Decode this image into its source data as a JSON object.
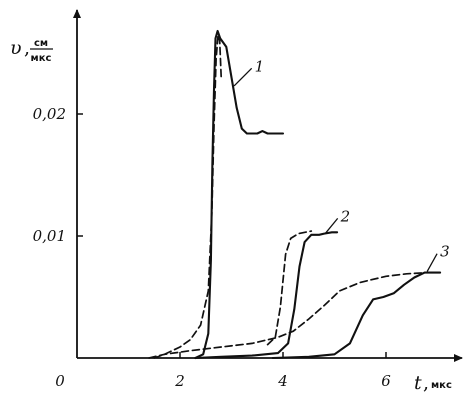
{
  "chart_data": {
    "type": "line",
    "xlabel": "t",
    "xunit": "мкс",
    "ylabel": "υ",
    "yunit_numerator": "см",
    "yunit_denominator": "мкс",
    "origin_label": "0",
    "xlim": [
      0,
      7.5
    ],
    "ylim": [
      0,
      0.028
    ],
    "x_ticks": [
      {
        "value": 2,
        "label": "2"
      },
      {
        "value": 4,
        "label": "4"
      },
      {
        "value": 6,
        "label": "6"
      }
    ],
    "y_ticks": [
      {
        "value": 0.01,
        "label": "0,01"
      },
      {
        "value": 0.02,
        "label": "0,02"
      }
    ],
    "grid": false,
    "series": [
      {
        "name": "1",
        "style": "solid",
        "points": [
          [
            2.3,
            0
          ],
          [
            2.45,
            0.0003
          ],
          [
            2.55,
            0.002
          ],
          [
            2.6,
            0.008
          ],
          [
            2.63,
            0.016
          ],
          [
            2.66,
            0.022
          ],
          [
            2.69,
            0.0262
          ],
          [
            2.73,
            0.0268
          ],
          [
            2.78,
            0.0262
          ],
          [
            2.9,
            0.0255
          ],
          [
            3.0,
            0.023
          ],
          [
            3.1,
            0.0205
          ],
          [
            3.2,
            0.0188
          ],
          [
            3.3,
            0.0184
          ],
          [
            3.5,
            0.0184
          ],
          [
            3.6,
            0.0186
          ],
          [
            3.7,
            0.0184
          ],
          [
            4.0,
            0.0184
          ]
        ],
        "label_at": [
          3.45,
          0.0235
        ],
        "leader_from": [
          3.05,
          0.0223
        ]
      },
      {
        "name": "1",
        "style": "dashed",
        "points": [
          [
            1.5,
            0
          ],
          [
            1.7,
            0.0003
          ],
          [
            2.0,
            0.0009
          ],
          [
            2.2,
            0.0015
          ],
          [
            2.4,
            0.0027
          ],
          [
            2.55,
            0.0055
          ],
          [
            2.62,
            0.012
          ],
          [
            2.66,
            0.019
          ],
          [
            2.7,
            0.0245
          ],
          [
            2.74,
            0.0265
          ],
          [
            2.77,
            0.026
          ],
          [
            2.8,
            0.023
          ]
        ]
      },
      {
        "name": "2",
        "style": "solid",
        "points": [
          [
            2.3,
            0
          ],
          [
            2.8,
            0.0001
          ],
          [
            3.4,
            0.0002
          ],
          [
            3.9,
            0.0004
          ],
          [
            4.1,
            0.0012
          ],
          [
            4.22,
            0.004
          ],
          [
            4.32,
            0.0075
          ],
          [
            4.42,
            0.0095
          ],
          [
            4.55,
            0.0101
          ],
          [
            4.7,
            0.0101
          ],
          [
            4.8,
            0.0102
          ],
          [
            4.95,
            0.0103
          ],
          [
            5.05,
            0.0103
          ]
        ],
        "label_at": [
          5.12,
          0.0112
        ],
        "leader_from": [
          4.82,
          0.0102
        ]
      },
      {
        "name": "2",
        "style": "dashed",
        "points": [
          [
            3.7,
            0.0011
          ],
          [
            3.85,
            0.0017
          ],
          [
            3.95,
            0.0042
          ],
          [
            4.05,
            0.0085
          ],
          [
            4.15,
            0.0098
          ],
          [
            4.3,
            0.0102
          ],
          [
            4.55,
            0.0104
          ]
        ]
      },
      {
        "name": "3",
        "style": "solid",
        "points": [
          [
            3.8,
            0
          ],
          [
            4.5,
            0.0001
          ],
          [
            5.0,
            0.0003
          ],
          [
            5.3,
            0.0012
          ],
          [
            5.55,
            0.0035
          ],
          [
            5.75,
            0.0048
          ],
          [
            5.95,
            0.005
          ],
          [
            6.15,
            0.0053
          ],
          [
            6.35,
            0.006
          ],
          [
            6.55,
            0.0066
          ],
          [
            6.75,
            0.007
          ],
          [
            7.05,
            0.007
          ]
        ],
        "label_at": [
          7.05,
          0.0083
        ],
        "leader_from": [
          6.8,
          0.0071
        ]
      },
      {
        "name": "3",
        "style": "dashed",
        "points": [
          [
            1.4,
            0
          ],
          [
            1.7,
            0.0003
          ],
          [
            2.2,
            0.0006
          ],
          [
            2.8,
            0.0009
          ],
          [
            3.4,
            0.0012
          ],
          [
            3.9,
            0.0017
          ],
          [
            4.2,
            0.0022
          ],
          [
            4.5,
            0.0032
          ],
          [
            4.8,
            0.0043
          ],
          [
            5.1,
            0.0055
          ],
          [
            5.5,
            0.0062
          ],
          [
            6.0,
            0.0067
          ],
          [
            6.4,
            0.0069
          ],
          [
            6.8,
            0.007
          ]
        ]
      }
    ]
  }
}
